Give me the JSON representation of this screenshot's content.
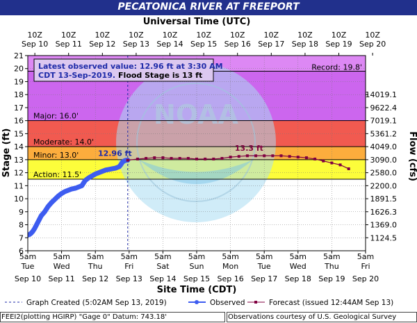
{
  "title": "PECATONICA RIVER AT FREEPORT",
  "top_axis_title": "Universal Time (UTC)",
  "bottom_axis_title": "Site Time (CDT)",
  "left_axis_title": "Stage (ft)",
  "right_axis_title": "Flow (cfs)",
  "info_box": {
    "line1": "Latest observed value: 12.96 ft at 3:30 AM",
    "line2_a": "CDT 13-Sep-2019.",
    "line2_b": "Flood Stage is 13 ft"
  },
  "legend": {
    "graph_created": "Graph Created (5:02AM Sep 13, 2019)",
    "observed": "Observed",
    "forecast": "Forecast (issued 12:44AM Sep 13)"
  },
  "footer": {
    "left": "FEEI2(plotting HGIRP) \"Gage 0\" Datum: 743.18'",
    "right": "Observations courtesy of U.S. Geological Survey"
  },
  "watermark": {
    "seal_text_top": "NATIONAL OCEANIC AND ATMOSPHERIC ADMINISTRATION",
    "seal_text_bottom": "U.S. DEPARTMENT OF COMMERCE",
    "center": "NOAA"
  },
  "colors": {
    "banner": "#21308c",
    "record": "#dd88f4",
    "major": "#cc66ee",
    "moderate": "#f15a50",
    "minor": "#fcad3d",
    "action": "#fcfd3b",
    "observed": "#3d5cf0",
    "forecast": "#800040"
  },
  "chart_data": {
    "type": "line",
    "xlim": [
      0,
      10
    ],
    "ylim": [
      6,
      21
    ],
    "y_ticks": [
      6,
      7,
      8,
      9,
      10,
      11,
      12,
      13,
      14,
      15,
      16,
      17,
      18,
      19,
      20,
      21
    ],
    "bottom_ticks": [
      {
        "t": "5am",
        "d": "Tue",
        "date": "Sep 10"
      },
      {
        "t": "5am",
        "d": "Wed",
        "date": "Sep 11"
      },
      {
        "t": "5am",
        "d": "Thu",
        "date": "Sep 12"
      },
      {
        "t": "5am",
        "d": "Fri",
        "date": "Sep 13"
      },
      {
        "t": "5am",
        "d": "Sat",
        "date": "Sep 14"
      },
      {
        "t": "5am",
        "d": "Sun",
        "date": "Sep 15"
      },
      {
        "t": "5am",
        "d": "Mon",
        "date": "Sep 16"
      },
      {
        "t": "5am",
        "d": "Tue",
        "date": "Sep 17"
      },
      {
        "t": "5am",
        "d": "Wed",
        "date": "Sep 18"
      },
      {
        "t": "5am",
        "d": "Thu",
        "date": "Sep 19"
      },
      {
        "t": "5am",
        "d": "Fri",
        "date": "Sep 20"
      }
    ],
    "top_ticks": [
      {
        "t": "10Z",
        "date": "Sep 10"
      },
      {
        "t": "10Z",
        "date": "Sep 11"
      },
      {
        "t": "10Z",
        "date": "Sep 12"
      },
      {
        "t": "10Z",
        "date": "Sep 13"
      },
      {
        "t": "10Z",
        "date": "Sep 14"
      },
      {
        "t": "10Z",
        "date": "Sep 15"
      },
      {
        "t": "10Z",
        "date": "Sep 16"
      },
      {
        "t": "10Z",
        "date": "Sep 17"
      },
      {
        "t": "10Z",
        "date": "Sep 18"
      },
      {
        "t": "10Z",
        "date": "Sep 19"
      },
      {
        "t": "10Z",
        "date": "Sep 20"
      }
    ],
    "flow_ticks": [
      {
        "stage": 7,
        "label": "1124.5"
      },
      {
        "stage": 8,
        "label": "1369.0"
      },
      {
        "stage": 9,
        "label": "1626.3"
      },
      {
        "stage": 10,
        "label": "1891.5"
      },
      {
        "stage": 11,
        "label": "2200.0"
      },
      {
        "stage": 12,
        "label": "2580.0"
      },
      {
        "stage": 13,
        "label": "3090.0"
      },
      {
        "stage": 14,
        "label": "4049.0"
      },
      {
        "stage": 15,
        "label": "5361.2"
      },
      {
        "stage": 16,
        "label": "7019.1"
      },
      {
        "stage": 17,
        "label": "9622.4"
      },
      {
        "stage": 18,
        "label": "14019.1"
      }
    ],
    "flood_categories": [
      {
        "name": "Action",
        "label": "Action: 11.5'",
        "from": 11.5,
        "to": 13
      },
      {
        "name": "Minor",
        "label": "Minor: 13.0'",
        "from": 13,
        "to": 14
      },
      {
        "name": "Moderate",
        "label": "Moderate: 14.0'",
        "from": 14,
        "to": 16
      },
      {
        "name": "Major",
        "label": "Major: 16.0'",
        "from": 16,
        "to": 21
      }
    ],
    "record": {
      "value": 19.8,
      "label": "Record: 19.8'"
    },
    "graph_created_x": 2.958,
    "annotations": [
      {
        "text": "12.96 ft",
        "x": 2.9,
        "y": 12.96
      },
      {
        "text": "13.3 ft",
        "x": 6.5,
        "y": 13.3
      }
    ],
    "series": [
      {
        "name": "Observed",
        "x": [
          0,
          0.05,
          0.1,
          0.15,
          0.2,
          0.3,
          0.4,
          0.5,
          0.6,
          0.7,
          0.8,
          0.9,
          1.0,
          1.1,
          1.2,
          1.3,
          1.4,
          1.5,
          1.6,
          1.7,
          1.8,
          1.9,
          2.0,
          2.1,
          2.2,
          2.3,
          2.4,
          2.5,
          2.6,
          2.7,
          2.75,
          2.8,
          2.85,
          2.9,
          2.958
        ],
        "y": [
          7.2,
          7.25,
          7.35,
          7.5,
          7.7,
          8.2,
          8.7,
          9.0,
          9.4,
          9.7,
          9.95,
          10.2,
          10.4,
          10.55,
          10.65,
          10.75,
          10.8,
          10.9,
          11.0,
          11.4,
          11.6,
          11.75,
          11.9,
          12.0,
          12.1,
          12.2,
          12.25,
          12.3,
          12.35,
          12.45,
          12.6,
          12.8,
          12.9,
          12.95,
          12.96
        ]
      },
      {
        "name": "Forecast",
        "x": [
          2.958,
          3.25,
          3.5,
          3.75,
          4.0,
          4.25,
          4.5,
          4.75,
          5.0,
          5.25,
          5.5,
          5.75,
          6.0,
          6.25,
          6.5,
          6.75,
          7.0,
          7.25,
          7.5,
          7.75,
          8.0,
          8.25,
          8.5,
          8.75,
          9.0,
          9.25,
          9.5
        ],
        "y": [
          12.96,
          13.05,
          13.1,
          13.15,
          13.15,
          13.1,
          13.1,
          13.1,
          13.05,
          13.05,
          13.05,
          13.1,
          13.2,
          13.25,
          13.3,
          13.3,
          13.3,
          13.3,
          13.3,
          13.25,
          13.2,
          13.15,
          13.05,
          12.9,
          12.75,
          12.6,
          12.3
        ]
      }
    ]
  }
}
